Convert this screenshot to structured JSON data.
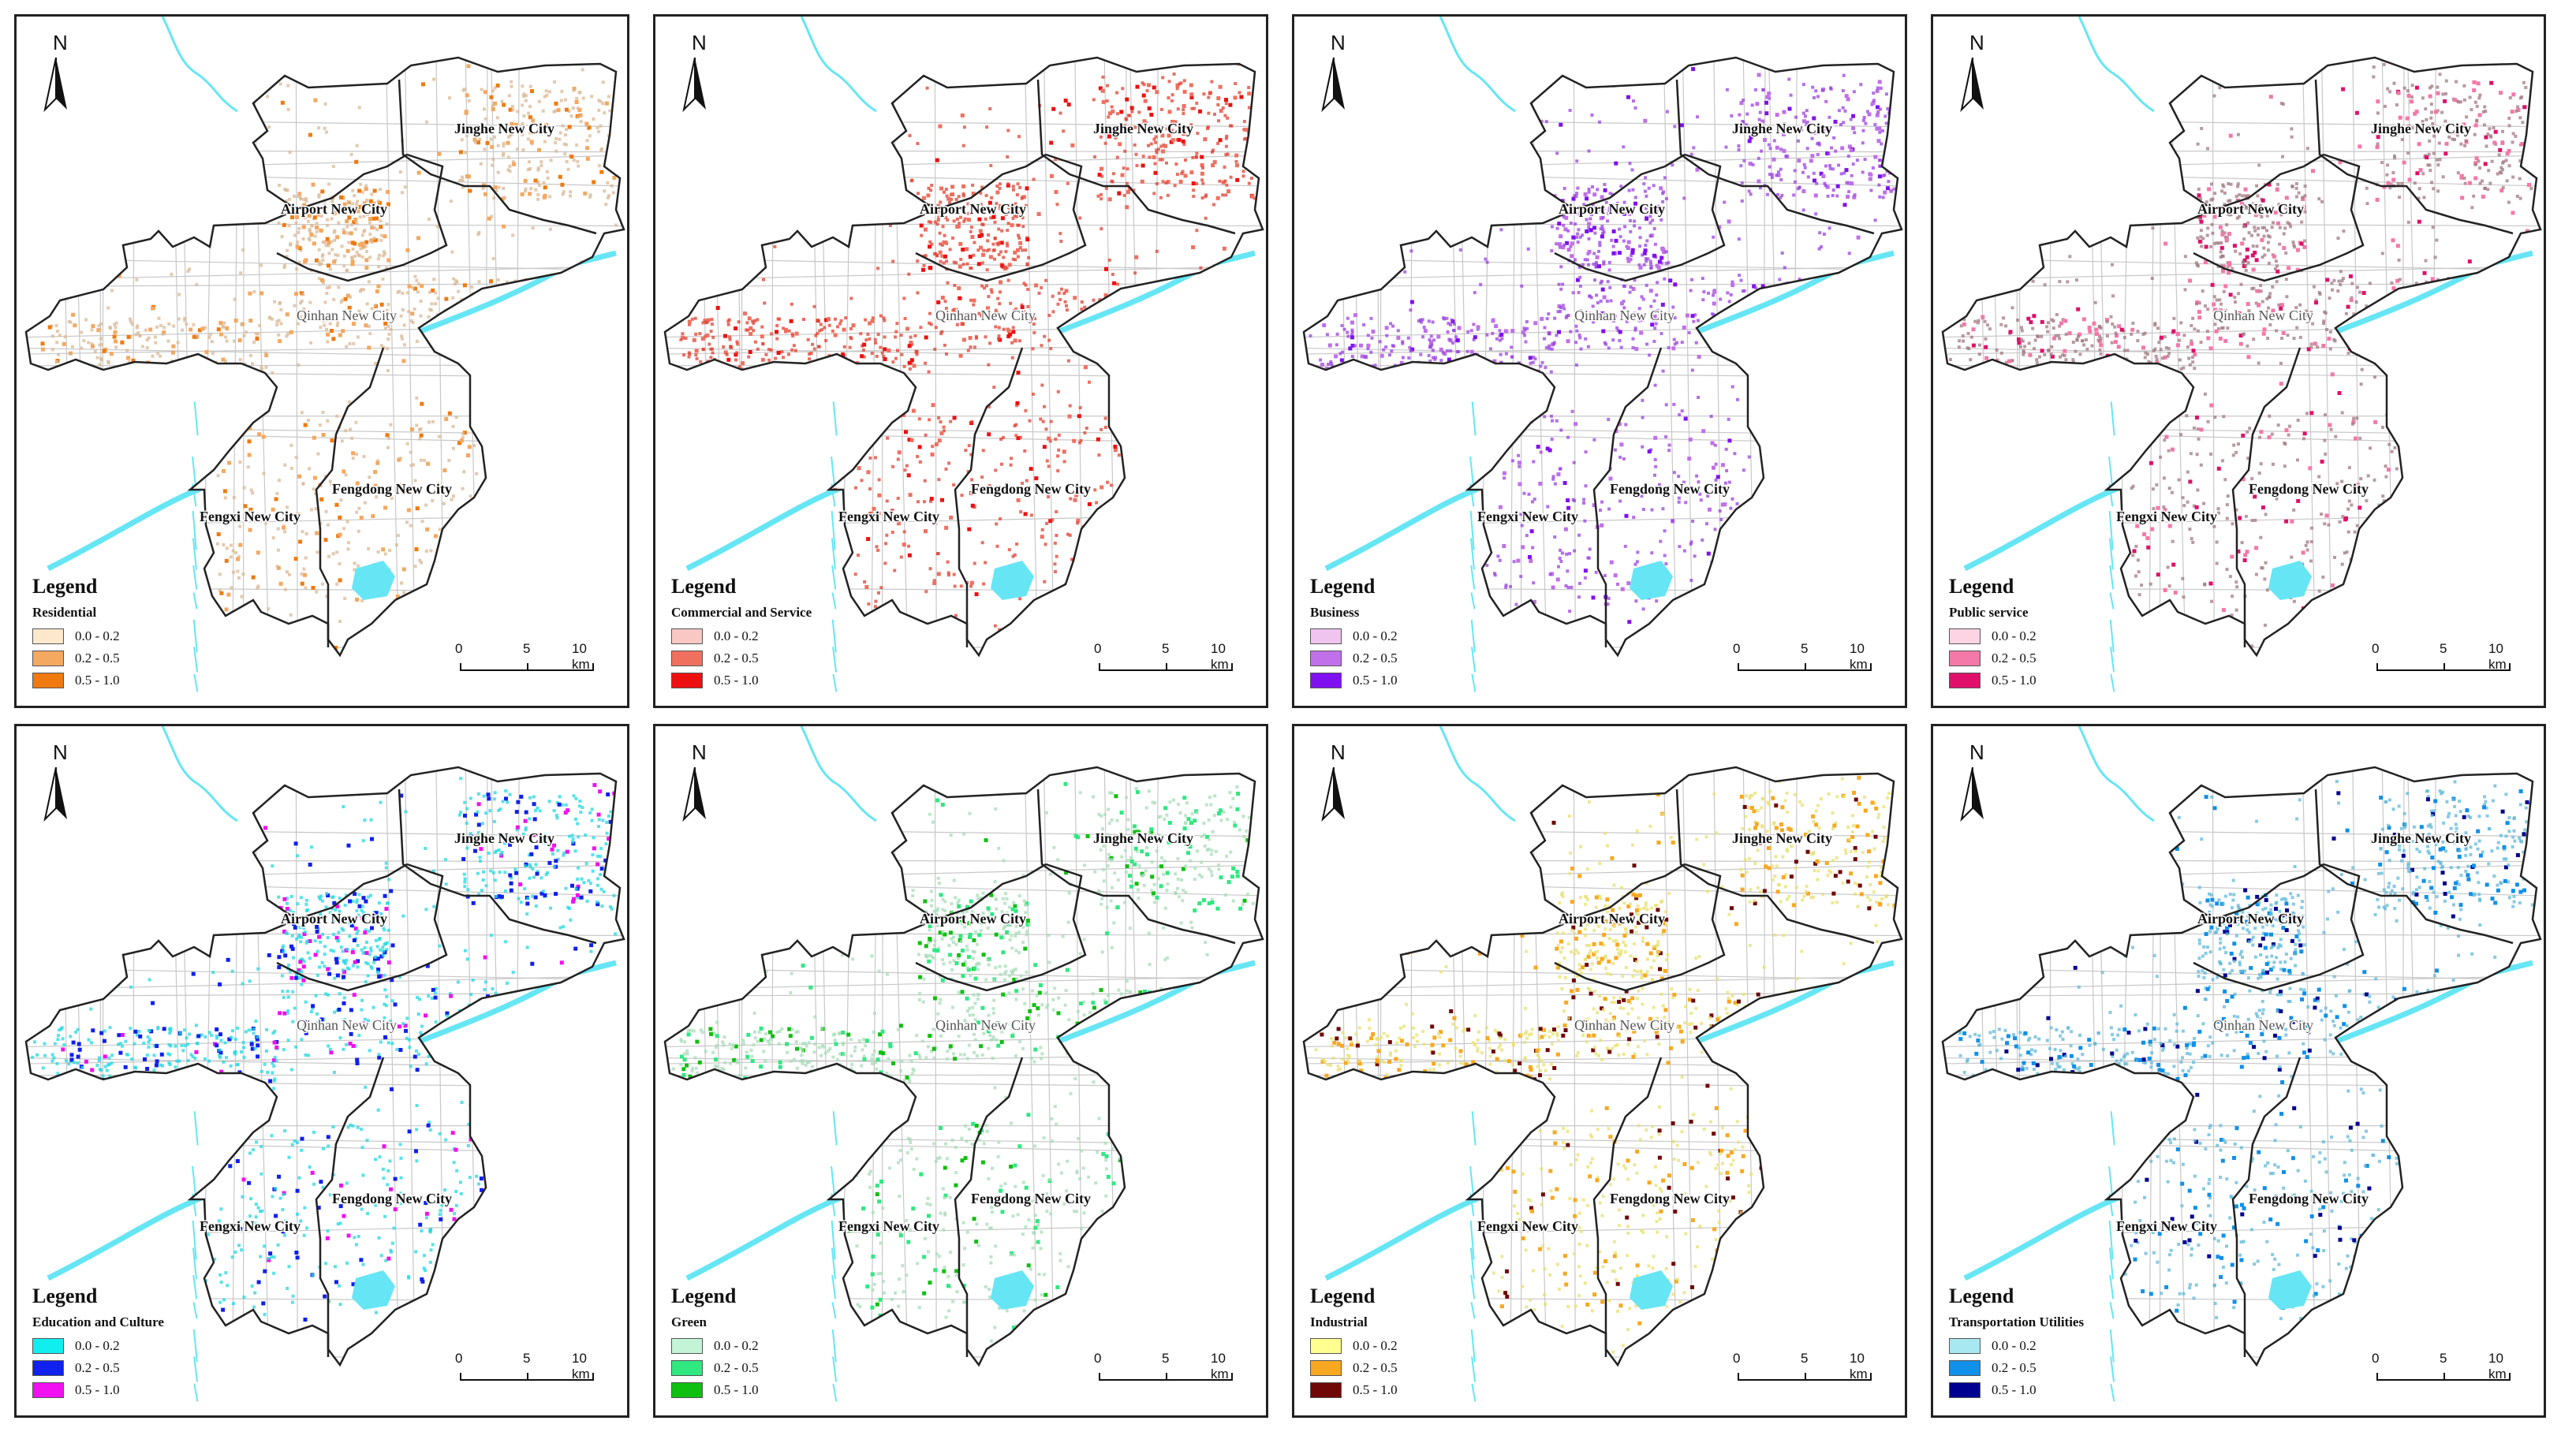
{
  "north_label": "N",
  "city_names": {
    "jinghe": "Jinghe New City",
    "airport": "Airport New City",
    "qinhan": "Qinhan New City",
    "fengdong": "Fengdong New City",
    "fengxi": "Fengxi New City"
  },
  "legend_title": "Legend",
  "class_labels": [
    "0.0 - 0.2",
    "0.2 - 0.5",
    "0.5 - 1.0"
  ],
  "scale": {
    "zero": "0",
    "mid": "5",
    "max": "10 km"
  },
  "panels": [
    {
      "category": "Residential",
      "colors": [
        "#fde8cc",
        "#f4a860",
        "#f07a10"
      ],
      "dot": "#d9b896"
    },
    {
      "category": "Commercial and Service",
      "colors": [
        "#f9c8c4",
        "#f07060",
        "#ee1010"
      ],
      "dot": "#e04030"
    },
    {
      "category": "Business",
      "colors": [
        "#efc4ef",
        "#c070e8",
        "#8010f0"
      ],
      "dot": "#9a40e0"
    },
    {
      "category": "Public service",
      "colors": [
        "#fcd4e4",
        "#f478a8",
        "#e0106a"
      ],
      "dot": "#a07880"
    },
    {
      "category": "Education and Culture",
      "colors": [
        "#10eef0",
        "#1020ee",
        "#f010f0"
      ],
      "dot": "#20d8e0"
    },
    {
      "category": "Green",
      "colors": [
        "#c4f4d8",
        "#30e880",
        "#10c010"
      ],
      "dot": "#a8dcb8"
    },
    {
      "category": "Industrial",
      "colors": [
        "#ffff90",
        "#f8a820",
        "#700808"
      ],
      "dot": "#e8e070"
    },
    {
      "category": "Transportation Utilities",
      "colors": [
        "#a8e8f0",
        "#1090e8",
        "#000090"
      ],
      "dot": "#60b8d8"
    }
  ]
}
